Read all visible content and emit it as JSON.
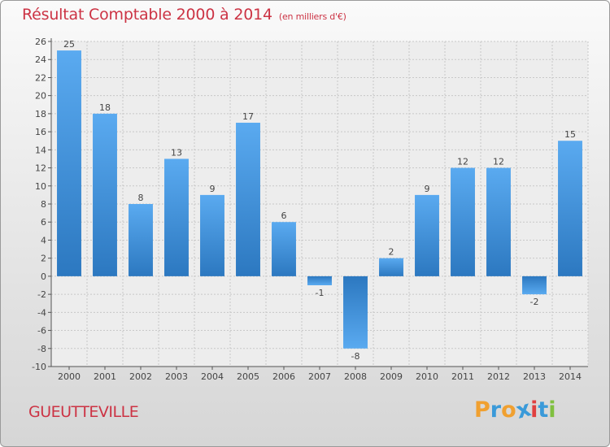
{
  "chart_data": {
    "type": "bar",
    "title": "Résultat Comptable 2000 à 2014",
    "subtitle": "(en milliers d'€)",
    "categories": [
      "2000",
      "2001",
      "2002",
      "2003",
      "2004",
      "2005",
      "2006",
      "2007",
      "2008",
      "2009",
      "2010",
      "2011",
      "2012",
      "2013",
      "2014"
    ],
    "values": [
      25,
      18,
      8,
      13,
      9,
      17,
      6,
      -1,
      -8,
      2,
      9,
      12,
      12,
      -2,
      15
    ],
    "ylim": [
      -10,
      26
    ],
    "yticks": [
      -10,
      -8,
      -6,
      -4,
      -2,
      0,
      2,
      4,
      6,
      8,
      10,
      12,
      14,
      16,
      18,
      20,
      22,
      24,
      26
    ],
    "grid": true,
    "bar_color": "#3d8fd6"
  },
  "footer": {
    "commune": "GUEUTTEVILLE"
  },
  "brand": {
    "letters": [
      "P",
      "r",
      "o",
      "x",
      "i",
      "t",
      "i"
    ],
    "colors": [
      "#f0a030",
      "#3a9ad9",
      "#f0a030",
      "#3a9ad9",
      "#e04040",
      "#3a9ad9",
      "#80c040"
    ]
  }
}
